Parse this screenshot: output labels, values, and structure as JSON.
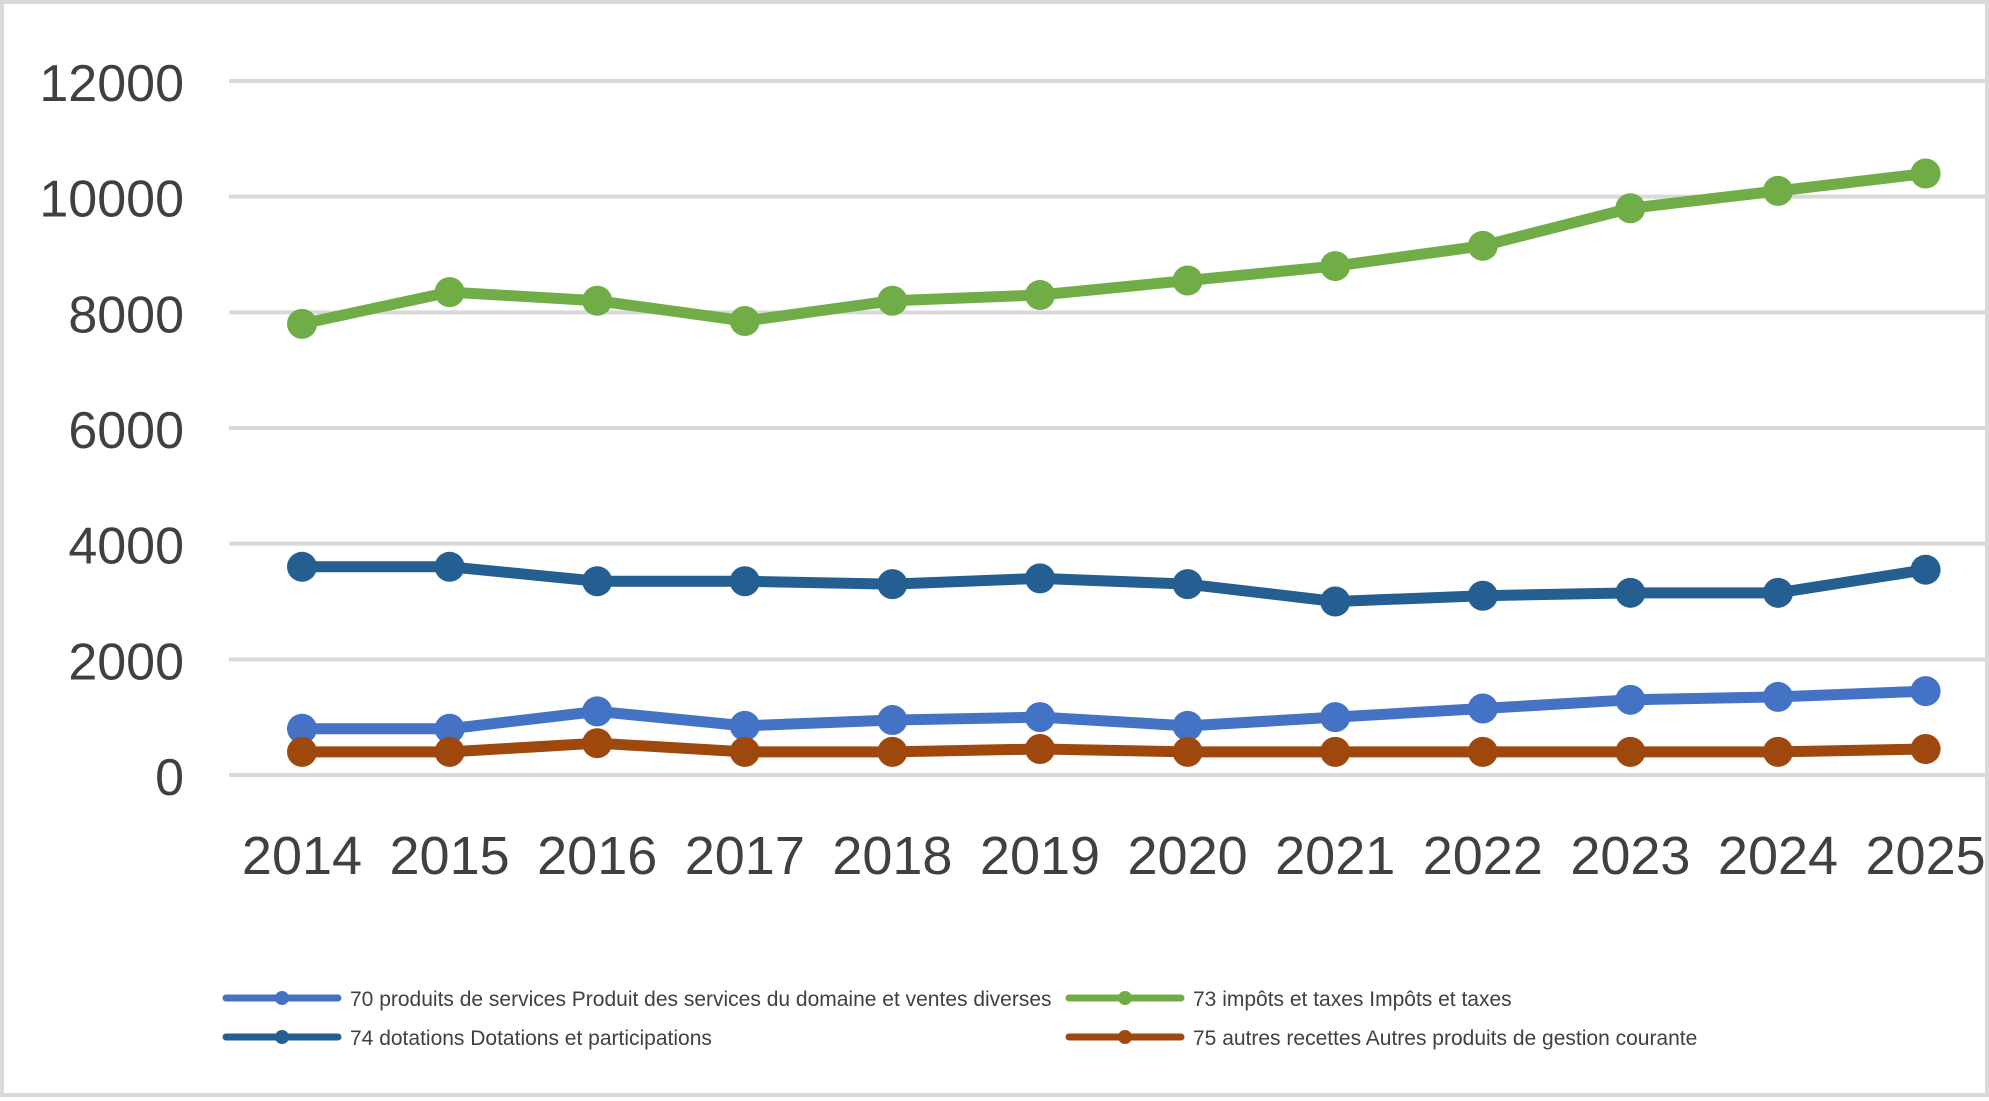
{
  "chart_data": {
    "type": "line",
    "title": "",
    "xlabel": "",
    "ylabel": "",
    "categories": [
      "2014",
      "2015",
      "2016",
      "2017",
      "2018",
      "2019",
      "2020",
      "2021",
      "2022",
      "2023",
      "2024",
      "2025"
    ],
    "ylim": [
      0,
      12000
    ],
    "yticks": [
      "0",
      "2000",
      "4000",
      "6000",
      "8000",
      "10000",
      "12000"
    ],
    "grid": true,
    "legend_position": "bottom",
    "series": [
      {
        "name": "70 produits de services Produit des services du domaine et ventes diverses",
        "color": "#4472c4",
        "values": [
          800,
          800,
          1100,
          850,
          950,
          1000,
          850,
          1000,
          1150,
          1300,
          1350,
          1450
        ]
      },
      {
        "name": "73 impôts et taxes Impôts et taxes",
        "color": "#70ad47",
        "values": [
          7800,
          8350,
          8200,
          7850,
          8200,
          8300,
          8550,
          8800,
          9150,
          9800,
          10100,
          10400
        ]
      },
      {
        "name": "74 dotations Dotations et participations",
        "color": "#255e91",
        "values": [
          3600,
          3600,
          3350,
          3350,
          3300,
          3400,
          3300,
          3000,
          3100,
          3150,
          3150,
          3550
        ]
      },
      {
        "name": "75 autres recettes Autres produits de gestion courante",
        "color": "#9e480e",
        "values": [
          400,
          400,
          550,
          400,
          400,
          450,
          400,
          400,
          400,
          400,
          400,
          450
        ]
      }
    ]
  }
}
